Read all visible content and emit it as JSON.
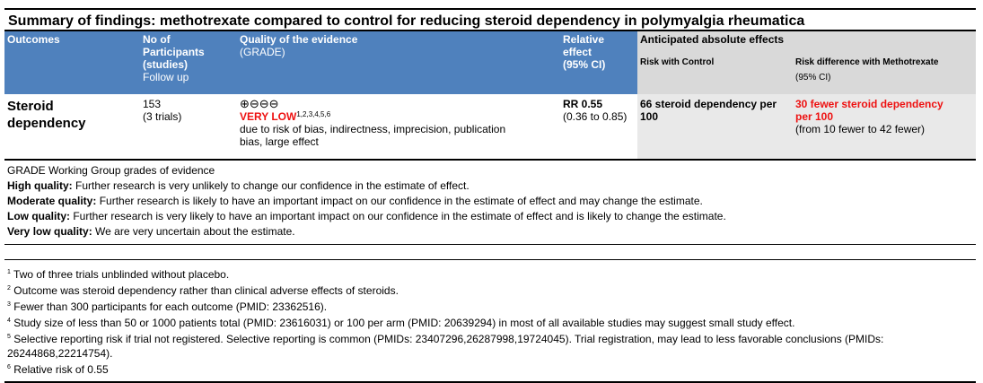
{
  "title": "Summary of findings: methotrexate compared to control for reducing steroid dependency in polymyalgia rheumatica",
  "header": {
    "outcomes": "Outcomes",
    "participants_l1": "No of",
    "participants_l2": "Participants",
    "participants_l3": "(studies)",
    "participants_l4": "Follow up",
    "quality_l1": "Quality of the evidence",
    "quality_l2": "(GRADE)",
    "relative_l1": "Relative",
    "relative_l2": "effect",
    "relative_l3": "(95% CI)",
    "anticipated": "Anticipated absolute effects",
    "risk_control": "Risk with Control",
    "risk_diff": "Risk difference with Methotrexate",
    "risk_diff_ci": "(95% CI)"
  },
  "row": {
    "outcome_l1": "Steroid",
    "outcome_l2": "dependency",
    "participants": "153",
    "studies": "(3 trials)",
    "quality_symbols": "⊕⊖⊖⊖",
    "quality_label": "VERY LOW",
    "quality_sup": "1,2,3,4,5,6",
    "quality_reason_l1": "due to risk of bias, indirectness, imprecision, publication",
    "quality_reason_l2": "bias, large effect",
    "relative_l1": "RR 0.55",
    "relative_l2": "(0.36 to 0.85)",
    "control_l1": "66 steroid dependency per",
    "control_l2": "100",
    "diff_l1": "30 fewer steroid dependency",
    "diff_l2": "per 100",
    "diff_l3": "(from 10 fewer to 42 fewer)"
  },
  "legend": {
    "heading": "GRADE Working Group grades of evidence",
    "high_label": "High quality:",
    "high_text": " Further research is very unlikely to change our confidence in the estimate of effect.",
    "moderate_label": "Moderate quality:",
    "moderate_text": " Further research is likely to have an important impact on our confidence in the estimate of effect and may change the estimate.",
    "low_label": "Low quality:",
    "low_text": " Further research is very likely to have an important impact on our confidence in the estimate of effect and is likely to change the estimate.",
    "verylow_label": "Very low quality:",
    "verylow_text": " We are very uncertain about the estimate."
  },
  "footnotes": [
    {
      "n": "1",
      "text": " Two of three trials unblinded without placebo."
    },
    {
      "n": "2",
      "text": " Outcome was steroid dependency rather than clinical adverse effects of steroids."
    },
    {
      "n": "3",
      "text": " Fewer than 300 participants for each outcome (PMID: 23362516)."
    },
    {
      "n": "4",
      "text": " Study size of less than 50 or 1000 patients total (PMID: 23616031) or 100 per arm (PMID: 20639294) in most of all available studies may suggest small study effect."
    },
    {
      "n": "5",
      "text": " Selective reporting risk if trial not registered. Selective reporting is common (PMIDs: 23407296,26287998,19724045). Trial registration, may lead to less favorable conclusions (PMIDs: 26244868,22214754)."
    },
    {
      "n": "6",
      "text": " Relative risk of 0.55"
    }
  ],
  "colors": {
    "header_blue": "#4f81bd",
    "header_grey": "#d9d9d9",
    "row_grey": "#e9e9e9",
    "very_low_red": "#ee1111"
  }
}
